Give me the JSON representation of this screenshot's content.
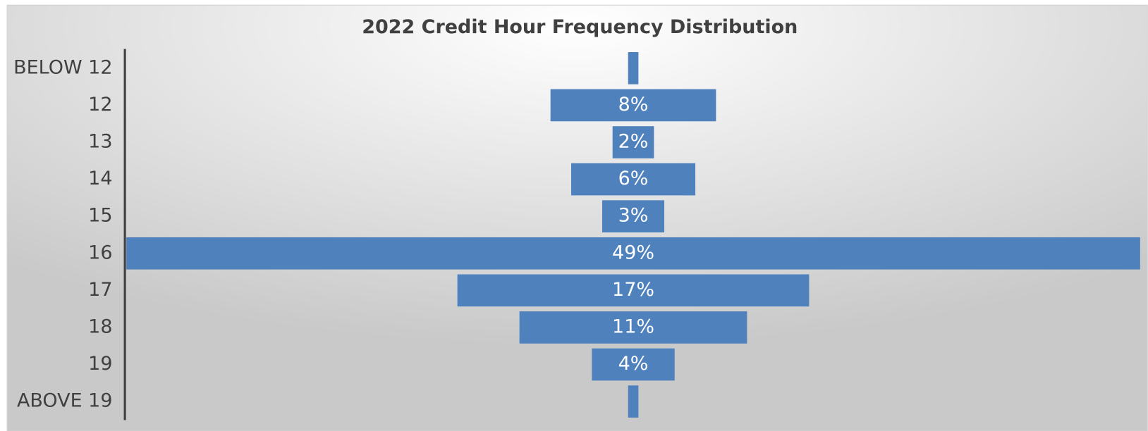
{
  "chart_data": {
    "type": "funnel",
    "title": "2022 Credit Hour Frequency Distribution",
    "categories": [
      "BELOW 12",
      "12",
      "13",
      "14",
      "15",
      "16",
      "17",
      "18",
      "19",
      "ABOVE 19"
    ],
    "values": [
      0.5,
      8,
      2,
      6,
      3,
      49,
      17,
      11,
      4,
      0.5
    ],
    "value_labels": [
      null,
      "8%",
      "2%",
      "6%",
      "3%",
      "49%",
      "17%",
      "11%",
      "4%",
      null
    ],
    "color": "#4f81bd"
  }
}
